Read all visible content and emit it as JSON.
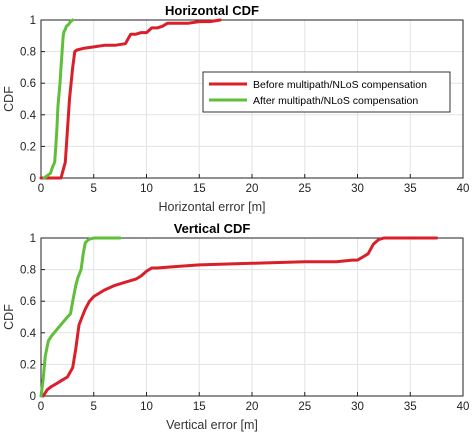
{
  "chart_data": [
    {
      "type": "line",
      "title": "Horizontal CDF",
      "xlabel": "Horizontal error [m]",
      "ylabel": "CDF",
      "xlim": [
        0,
        40
      ],
      "ylim": [
        0,
        1
      ],
      "xticks": [
        "0",
        "5",
        "10",
        "15",
        "20",
        "25",
        "30",
        "35",
        "40"
      ],
      "yticks": [
        "0",
        "0.2",
        "0.4",
        "0.6",
        "0.8",
        "1"
      ],
      "grid": true,
      "legend": "top-right",
      "series": [
        {
          "name": "Before multipath/NLoS compensation",
          "color": "#d9202a",
          "x": [
            0,
            1.9,
            2.3,
            2.5,
            2.7,
            3.0,
            3.2,
            3.4,
            4.0,
            5.0,
            6.0,
            7.0,
            8.0,
            8.5,
            9.0,
            9.5,
            10.0,
            10.5,
            11.0,
            11.5,
            12.0,
            12.5,
            14.0,
            15.0,
            16.0,
            17.0
          ],
          "y": [
            0,
            0.0,
            0.1,
            0.3,
            0.5,
            0.7,
            0.8,
            0.81,
            0.82,
            0.83,
            0.84,
            0.84,
            0.85,
            0.91,
            0.91,
            0.92,
            0.92,
            0.95,
            0.95,
            0.96,
            0.98,
            0.98,
            0.98,
            0.99,
            0.99,
            1.0
          ]
        },
        {
          "name": "After multipath/NLoS compensation",
          "color": "#5fbf3a",
          "x": [
            0.3,
            0.7,
            0.9,
            1.0,
            1.1,
            1.3,
            1.4,
            1.5,
            1.6,
            1.8,
            1.9,
            2.0,
            2.1,
            2.2,
            2.3,
            2.4,
            2.6,
            2.8,
            3.0
          ],
          "y": [
            0,
            0.02,
            0.03,
            0.05,
            0.07,
            0.1,
            0.2,
            0.3,
            0.45,
            0.6,
            0.7,
            0.8,
            0.9,
            0.93,
            0.94,
            0.96,
            0.97,
            0.99,
            1.0
          ]
        }
      ]
    },
    {
      "type": "line",
      "title": "Vertical CDF",
      "xlabel": "Vertical error [m]",
      "ylabel": "CDF",
      "xlim": [
        0,
        40
      ],
      "ylim": [
        0,
        1
      ],
      "xticks": [
        "0",
        "5",
        "10",
        "15",
        "20",
        "25",
        "30",
        "35",
        "40"
      ],
      "yticks": [
        "0",
        "0.2",
        "0.4",
        "0.6",
        "0.8",
        "1"
      ],
      "grid": true,
      "series": [
        {
          "name": "Before multipath/NLoS compensation",
          "color": "#d9202a",
          "x": [
            0.2,
            0.6,
            1.0,
            1.5,
            2.0,
            2.5,
            3.0,
            3.3,
            3.6,
            3.9,
            4.2,
            4.6,
            5.0,
            6.0,
            7.0,
            8.0,
            9.0,
            9.5,
            10.0,
            10.5,
            11.0,
            13.0,
            15.0,
            20.0,
            25.0,
            28.0,
            29.5,
            30.0,
            30.5,
            31.0,
            31.5,
            32.0,
            32.5,
            33.0,
            35.0,
            37.5
          ],
          "y": [
            0,
            0.04,
            0.06,
            0.08,
            0.1,
            0.12,
            0.18,
            0.3,
            0.45,
            0.5,
            0.55,
            0.6,
            0.63,
            0.67,
            0.7,
            0.72,
            0.74,
            0.76,
            0.79,
            0.81,
            0.81,
            0.82,
            0.83,
            0.84,
            0.85,
            0.85,
            0.86,
            0.86,
            0.88,
            0.9,
            0.96,
            0.99,
            1.0,
            1.0,
            1.0,
            1.0
          ]
        },
        {
          "name": "After multipath/NLoS compensation",
          "color": "#5fbf3a",
          "x": [
            0.0,
            0.2,
            0.4,
            0.7,
            1.0,
            1.5,
            2.0,
            2.5,
            2.8,
            3.0,
            3.3,
            3.5,
            3.8,
            4.0,
            4.2,
            4.5,
            5.0,
            6.0,
            7.5
          ],
          "y": [
            0,
            0.1,
            0.25,
            0.35,
            0.38,
            0.42,
            0.46,
            0.5,
            0.52,
            0.6,
            0.7,
            0.75,
            0.8,
            0.9,
            0.97,
            0.99,
            1.0,
            1.0,
            1.0
          ]
        }
      ]
    }
  ]
}
